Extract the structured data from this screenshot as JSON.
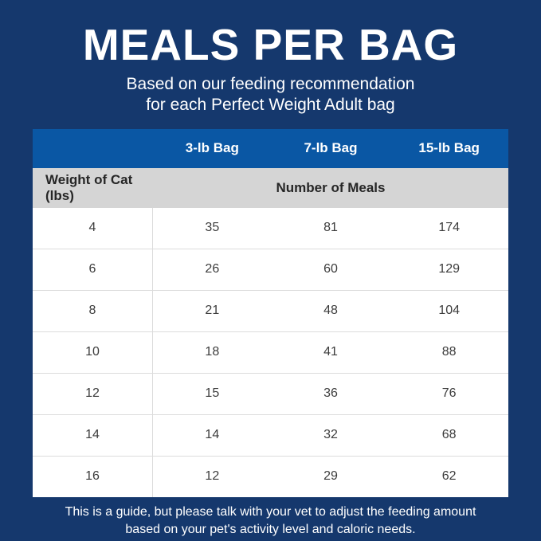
{
  "header": {
    "title": "MEALS PER BAG",
    "subtitle_line1": "Based on our feeding recommendation",
    "subtitle_line2": "for each Perfect Weight Adult bag"
  },
  "table": {
    "bag_columns": [
      "3-lb Bag",
      "7-lb Bag",
      "15-lb Bag"
    ],
    "row_header_label": "Weight of Cat (lbs)",
    "meals_header_label": "Number of Meals",
    "rows": [
      {
        "weight": "4",
        "meals": [
          "35",
          "81",
          "174"
        ]
      },
      {
        "weight": "6",
        "meals": [
          "26",
          "60",
          "129"
        ]
      },
      {
        "weight": "8",
        "meals": [
          "21",
          "48",
          "104"
        ]
      },
      {
        "weight": "10",
        "meals": [
          "18",
          "41",
          "88"
        ]
      },
      {
        "weight": "12",
        "meals": [
          "15",
          "36",
          "76"
        ]
      },
      {
        "weight": "14",
        "meals": [
          "14",
          "32",
          "68"
        ]
      },
      {
        "weight": "16",
        "meals": [
          "12",
          "29",
          "62"
        ]
      }
    ]
  },
  "footnote": {
    "line1": "This is a guide, but please talk with your vet to adjust the feeding amount",
    "line2": "based on your pet's activity level and caloric needs."
  },
  "colors": {
    "background_navy": "#15386d",
    "header_blue": "#0a57a4",
    "subheader_gray": "#d5d5d5",
    "row_divider": "#dcdcdc",
    "body_text": "#3c3c3c",
    "white": "#ffffff"
  },
  "chart_data": {
    "type": "table",
    "title": "MEALS PER BAG",
    "subtitle": "Based on our feeding recommendation for each Perfect Weight Adult bag",
    "columns": [
      "Weight of Cat (lbs)",
      "3-lb Bag",
      "7-lb Bag",
      "15-lb Bag"
    ],
    "units": "Number of Meals",
    "rows": [
      [
        4,
        35,
        81,
        174
      ],
      [
        6,
        26,
        60,
        129
      ],
      [
        8,
        21,
        48,
        104
      ],
      [
        10,
        18,
        41,
        88
      ],
      [
        12,
        15,
        36,
        76
      ],
      [
        14,
        14,
        32,
        68
      ],
      [
        16,
        12,
        29,
        62
      ]
    ],
    "note": "This is a guide, but please talk with your vet to adjust the feeding amount based on your pet's activity level and caloric needs."
  }
}
